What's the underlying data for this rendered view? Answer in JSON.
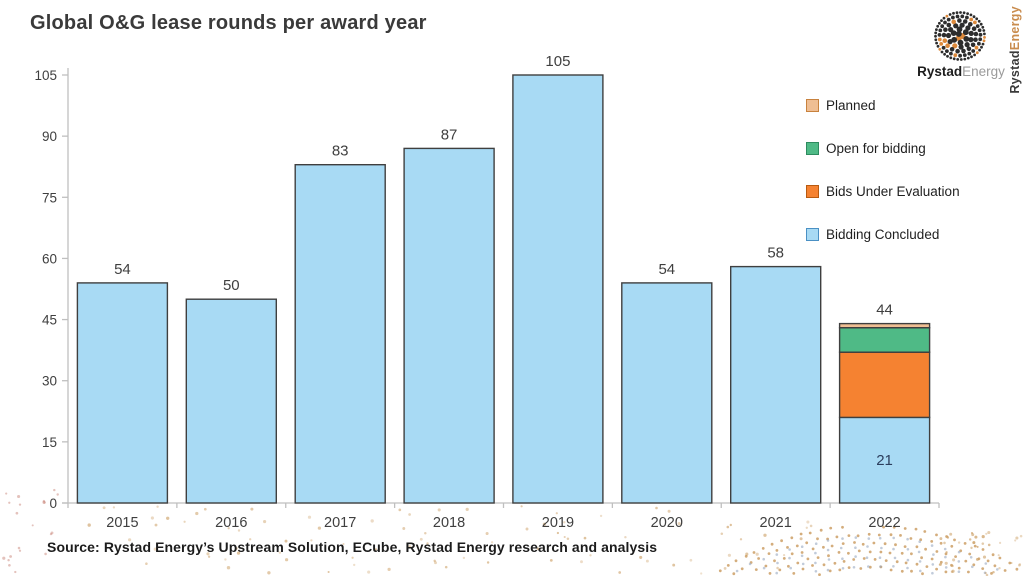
{
  "title": "Global O&G lease rounds per award year",
  "source_note": "Source: Rystad Energy’s Upstream Solution,  ECube, Rystad Energy research and analysis",
  "brand": {
    "logo_text_bold": "Rystad",
    "logo_text_light": "Energy",
    "vertical_text_bold": "Rystad",
    "vertical_text_light": "Energy",
    "vertical_light_color": "#c98c4e"
  },
  "legend": {
    "position": "right-top",
    "items": [
      {
        "label": "Planned",
        "color": "#EFBE93",
        "border": "#C8823E"
      },
      {
        "label": "Open for bidding",
        "color": "#4FBA86",
        "border": "#2E8B5F"
      },
      {
        "label": "Bids Under Evaluation",
        "color": "#F58231",
        "border": "#B85A10"
      },
      {
        "label": "Bidding Concluded",
        "color": "#A8DAF4",
        "border": "#4A90C4"
      }
    ]
  },
  "chart_data": {
    "type": "bar",
    "stacked": true,
    "title": "Global O&G lease rounds per award year",
    "xlabel": "",
    "ylabel": "",
    "categories": [
      "2015",
      "2016",
      "2017",
      "2018",
      "2019",
      "2020",
      "2021",
      "2022"
    ],
    "series": [
      {
        "name": "Bidding Concluded",
        "color": "#A8DAF4",
        "values": [
          54,
          50,
          83,
          87,
          105,
          54,
          58,
          21
        ]
      },
      {
        "name": "Bids Under Evaluation",
        "color": "#F58231",
        "values": [
          0,
          0,
          0,
          0,
          0,
          0,
          0,
          16
        ]
      },
      {
        "name": "Open for bidding",
        "color": "#4FBA86",
        "values": [
          0,
          0,
          0,
          0,
          0,
          0,
          0,
          6
        ]
      },
      {
        "name": "Planned",
        "color": "#EFBE93",
        "values": [
          0,
          0,
          0,
          0,
          0,
          0,
          0,
          1
        ]
      }
    ],
    "totals": [
      54,
      50,
      83,
      87,
      105,
      54,
      58,
      44
    ],
    "inner_labels": [
      {
        "category": "2022",
        "series": "Bidding Concluded",
        "value": 21
      }
    ],
    "yticks": [
      0,
      15,
      30,
      45,
      60,
      75,
      90,
      105
    ],
    "ylim": [
      0,
      105
    ],
    "grid": false,
    "legend_position": "right-top",
    "styles": {
      "bar_border": "#3f3f3f",
      "axis_color": "#bfbfbf",
      "tick_label_color": "#3f3f3f",
      "value_label_color": "#3f3f3f",
      "inner_label_color": "#2c3e5d"
    }
  },
  "decor": {
    "globe_dot_dark": "#2d2d2d",
    "globe_dot_orange": "#dd8a3c",
    "dots_tan": "#c9995b",
    "dots_blue": "#97a9c2",
    "dots_pink": "#c98579"
  }
}
